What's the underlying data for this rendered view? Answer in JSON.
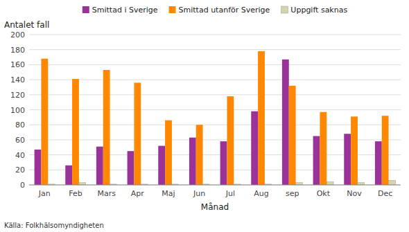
{
  "chart_data": {
    "type": "bar",
    "ylabel": "Antalet fall",
    "xlabel": "Månad",
    "annotations": [
      "Källa: Folkhälsomyndigheten"
    ],
    "categories": [
      "Jan",
      "Feb",
      "Mars",
      "Apr",
      "Maj",
      "Jun",
      "Jul",
      "Aug",
      "sep",
      "Okt",
      "Nov",
      "Dec"
    ],
    "series": [
      {
        "name": "Smittad i Sverige",
        "color": "#993399",
        "values": [
          47,
          26,
          51,
          45,
          52,
          63,
          58,
          98,
          167,
          65,
          68,
          58
        ]
      },
      {
        "name": "Smittad utanför Sverige",
        "color": "#ff8800",
        "values": [
          168,
          141,
          153,
          136,
          86,
          80,
          118,
          178,
          132,
          97,
          91,
          92
        ]
      },
      {
        "name": "Uppgift saknas",
        "color": "#d4d4b0",
        "values": [
          1,
          3,
          1,
          1,
          1,
          1,
          1,
          1,
          3,
          4,
          3,
          6
        ]
      }
    ],
    "ylim": [
      0,
      200
    ],
    "yticks": [
      0,
      20,
      40,
      60,
      80,
      100,
      120,
      140,
      160,
      180,
      200
    ],
    "grid": true,
    "legend": "top"
  }
}
